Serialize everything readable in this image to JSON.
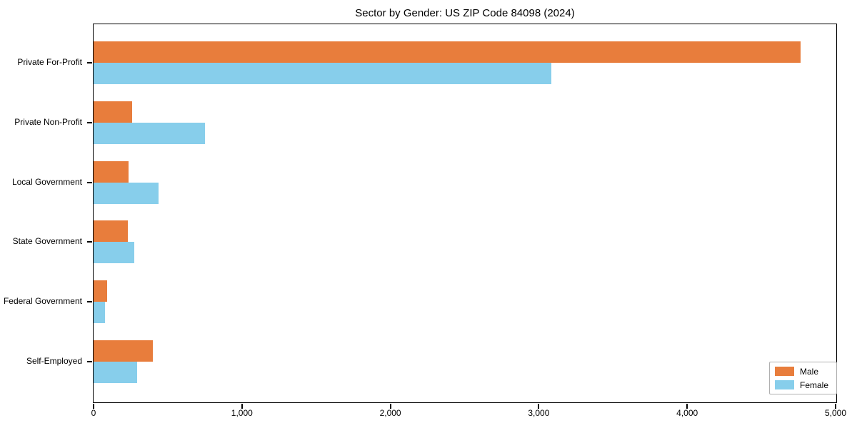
{
  "title": "Sector by Gender: US ZIP Code 84098 (2024)",
  "chart_data": {
    "type": "bar",
    "orientation": "horizontal",
    "title": "Sector by Gender: US ZIP Code 84098 (2024)",
    "categories": [
      "Private For-Profit",
      "Private Non-Profit",
      "Local Government",
      "State Government",
      "Federal Government",
      "Self-Employed"
    ],
    "series": [
      {
        "name": "Male",
        "color": "#E87D3C",
        "values": [
          4765,
          260,
          235,
          230,
          90,
          400
        ]
      },
      {
        "name": "Female",
        "color": "#87CEEB",
        "values": [
          3085,
          750,
          440,
          275,
          75,
          295
        ]
      }
    ],
    "xlabel": "",
    "ylabel": "",
    "xlim": [
      0,
      5000
    ],
    "xticks": [
      0,
      1000,
      2000,
      3000,
      4000,
      5000
    ],
    "xtick_labels": [
      "0",
      "1,000",
      "2,000",
      "3,000",
      "4,000",
      "5,000"
    ],
    "grid": false,
    "legend": {
      "position": "lower right",
      "entries": [
        "Male",
        "Female"
      ]
    }
  },
  "colors": {
    "male": "#E87D3C",
    "female": "#87CEEB",
    "axis": "#000000",
    "legend_border": "#b0b0b0",
    "background": "#ffffff"
  }
}
